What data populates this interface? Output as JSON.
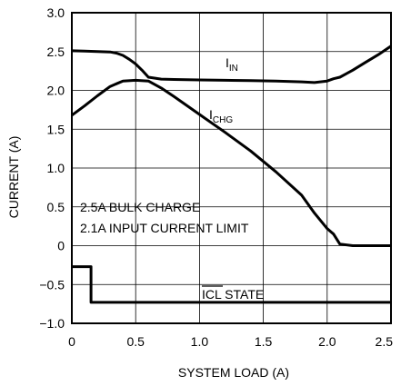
{
  "chart_data": {
    "type": "line",
    "xlabel": "SYSTEM LOAD (A)",
    "ylabel": "CURRENT (A)",
    "xlim": [
      0,
      2.5
    ],
    "ylim": [
      -1.0,
      3.0
    ],
    "x_ticks": [
      "0",
      "0.5",
      "1.0",
      "1.5",
      "2.0",
      "2.5"
    ],
    "y_ticks": [
      "3.0",
      "2.5",
      "2.0",
      "1.5",
      "1.0",
      "0.5",
      "0",
      "−0.5",
      "−1.0"
    ],
    "grid": true,
    "series": [
      {
        "name": "IIN",
        "label_main": "I",
        "label_sub": "IN",
        "x": [
          0,
          0.1,
          0.2,
          0.3,
          0.35,
          0.4,
          0.45,
          0.5,
          0.55,
          0.6,
          0.7,
          0.8,
          1.0,
          1.2,
          1.4,
          1.6,
          1.8,
          1.9,
          2.0,
          2.05,
          2.1,
          2.2,
          2.3,
          2.4,
          2.5
        ],
        "y": [
          2.51,
          2.505,
          2.5,
          2.495,
          2.48,
          2.45,
          2.4,
          2.34,
          2.26,
          2.17,
          2.145,
          2.14,
          2.135,
          2.13,
          2.125,
          2.12,
          2.11,
          2.1,
          2.12,
          2.15,
          2.17,
          2.26,
          2.36,
          2.46,
          2.57
        ]
      },
      {
        "name": "ICHG",
        "label_main": "I",
        "label_sub": "CHG",
        "x": [
          0,
          0.1,
          0.2,
          0.3,
          0.4,
          0.5,
          0.6,
          0.7,
          0.8,
          1.0,
          1.2,
          1.4,
          1.6,
          1.8,
          1.9,
          2.0,
          2.05,
          2.1,
          2.2,
          2.3,
          2.5
        ],
        "y": [
          1.68,
          1.8,
          1.93,
          2.05,
          2.12,
          2.13,
          2.12,
          2.03,
          1.92,
          1.69,
          1.46,
          1.22,
          0.95,
          0.65,
          0.42,
          0.22,
          0.15,
          0.02,
          0.0,
          0.0,
          0.0
        ]
      },
      {
        "name": "ICL STATE",
        "label_main": "ICL",
        "label_rest": " STATE",
        "x": [
          0,
          0.15,
          0.15,
          2.5
        ],
        "y": [
          -0.27,
          -0.27,
          -0.73,
          -0.73
        ]
      }
    ],
    "annotations": [
      "2.5A BULK CHARGE",
      "2.1A INPUT CURRENT LIMIT"
    ]
  }
}
